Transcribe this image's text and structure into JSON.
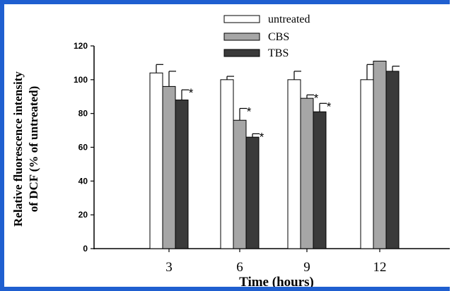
{
  "chart_data": {
    "type": "bar",
    "categories": [
      "3",
      "6",
      "9",
      "12"
    ],
    "series": [
      {
        "name": "untreated",
        "color": "#ffffff",
        "values": [
          104,
          100,
          100,
          100
        ],
        "errors": [
          5,
          2,
          5,
          9
        ],
        "significant": [
          false,
          false,
          false,
          false
        ]
      },
      {
        "name": "CBS",
        "color": "#a6a6a6",
        "values": [
          96,
          76,
          89,
          111
        ],
        "errors": [
          9,
          7,
          2,
          0
        ],
        "significant": [
          false,
          true,
          true,
          false
        ]
      },
      {
        "name": "TBS",
        "color": "#3a3a3a",
        "values": [
          88,
          66,
          81,
          105
        ],
        "errors": [
          6,
          2,
          5,
          3
        ],
        "significant": [
          true,
          true,
          true,
          false
        ]
      }
    ],
    "significance_marker": "*",
    "xlabel": "Time (hours)",
    "ylabel": [
      "Relative fluorescence intensity",
      "of DCF (% of untreated)"
    ],
    "ylim": [
      0,
      120
    ],
    "yticks": [
      0,
      20,
      40,
      60,
      80,
      100,
      120
    ],
    "grid": false,
    "legend_position": "top-center"
  }
}
